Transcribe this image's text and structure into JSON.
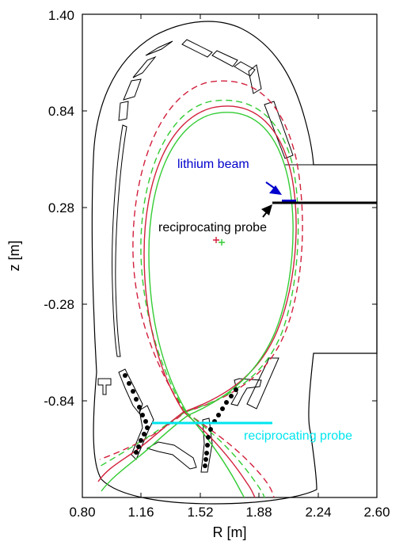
{
  "chart_data": {
    "type": "diagram",
    "xlabel": "R [m]",
    "ylabel": "z [m]",
    "xlim": [
      0.8,
      2.6
    ],
    "ylim": [
      -1.4,
      1.4
    ],
    "xticks": [
      "0.80",
      "1.16",
      "1.52",
      "1.88",
      "2.24",
      "2.60"
    ],
    "yticks": [
      "1.40",
      "0.84",
      "0.28",
      "-0.28",
      "-0.84"
    ],
    "annotations": {
      "lithium_beam": "lithium beam",
      "reciprocating_probe_black": "reciprocating probe",
      "reciprocating_probe_cyan": "reciprocating probe"
    },
    "colors": {
      "wall": "#000000",
      "separatrix_red": "#d21f3c",
      "separatrix_green": "#33cc33",
      "lithium_beam": "#0000cc",
      "probe_cyan": "#00e5ee",
      "probe_black": "#000000"
    }
  }
}
